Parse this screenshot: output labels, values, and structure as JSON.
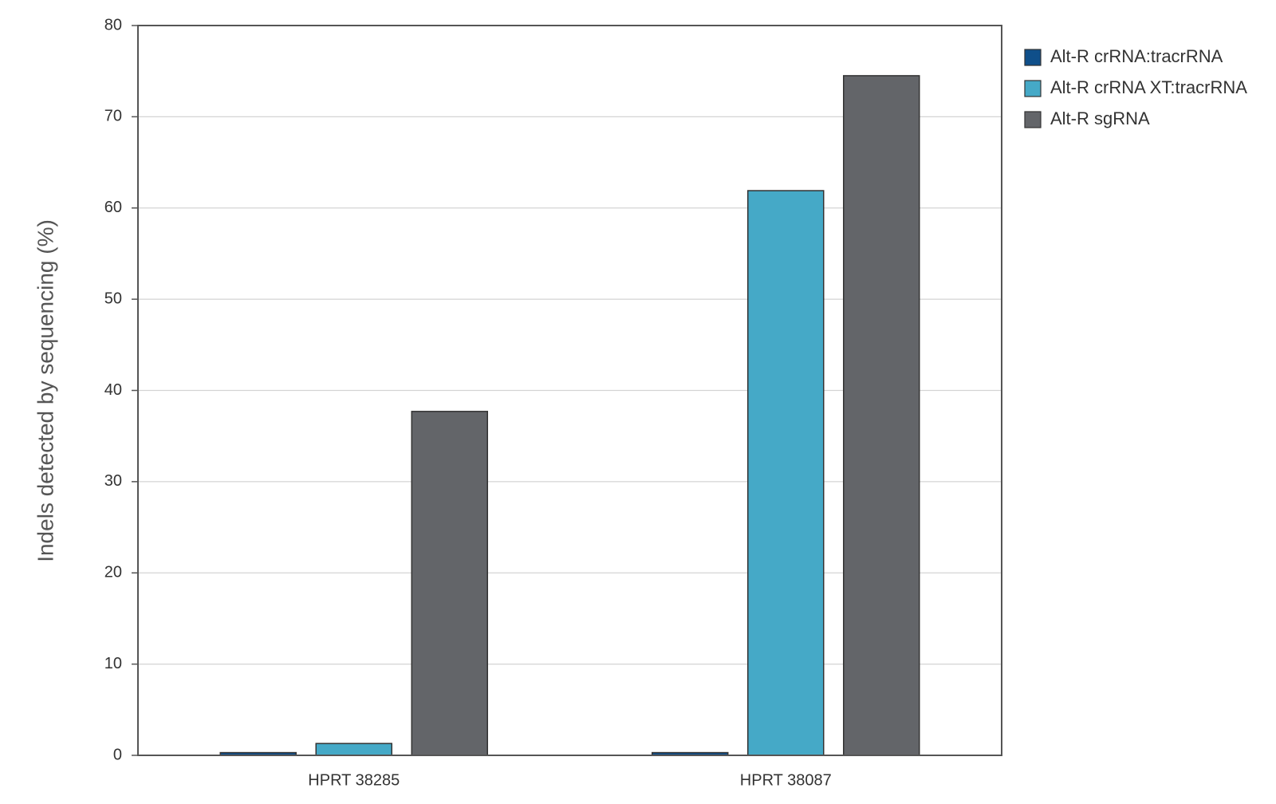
{
  "chart_data": {
    "type": "bar",
    "y_label": "Indels detected by sequencing (%)",
    "categories": [
      "HPRT 38285",
      "HPRT 38087"
    ],
    "series": [
      {
        "name": "Alt-R crRNA:tracrRNA",
        "color": "#0f4f8a",
        "values": [
          0.3,
          0.3
        ]
      },
      {
        "name": "Alt-R crRNA XT:tracrRNA",
        "color": "#45a9c7",
        "values": [
          1.3,
          61.9
        ]
      },
      {
        "name": "Alt-R sgRNA",
        "color": "#636569",
        "values": [
          37.7,
          74.5
        ]
      }
    ],
    "ylim": [
      0,
      80
    ],
    "yticks": [
      0,
      10,
      20,
      30,
      40,
      50,
      60,
      70,
      80
    ],
    "grid": true,
    "legend": "right"
  }
}
